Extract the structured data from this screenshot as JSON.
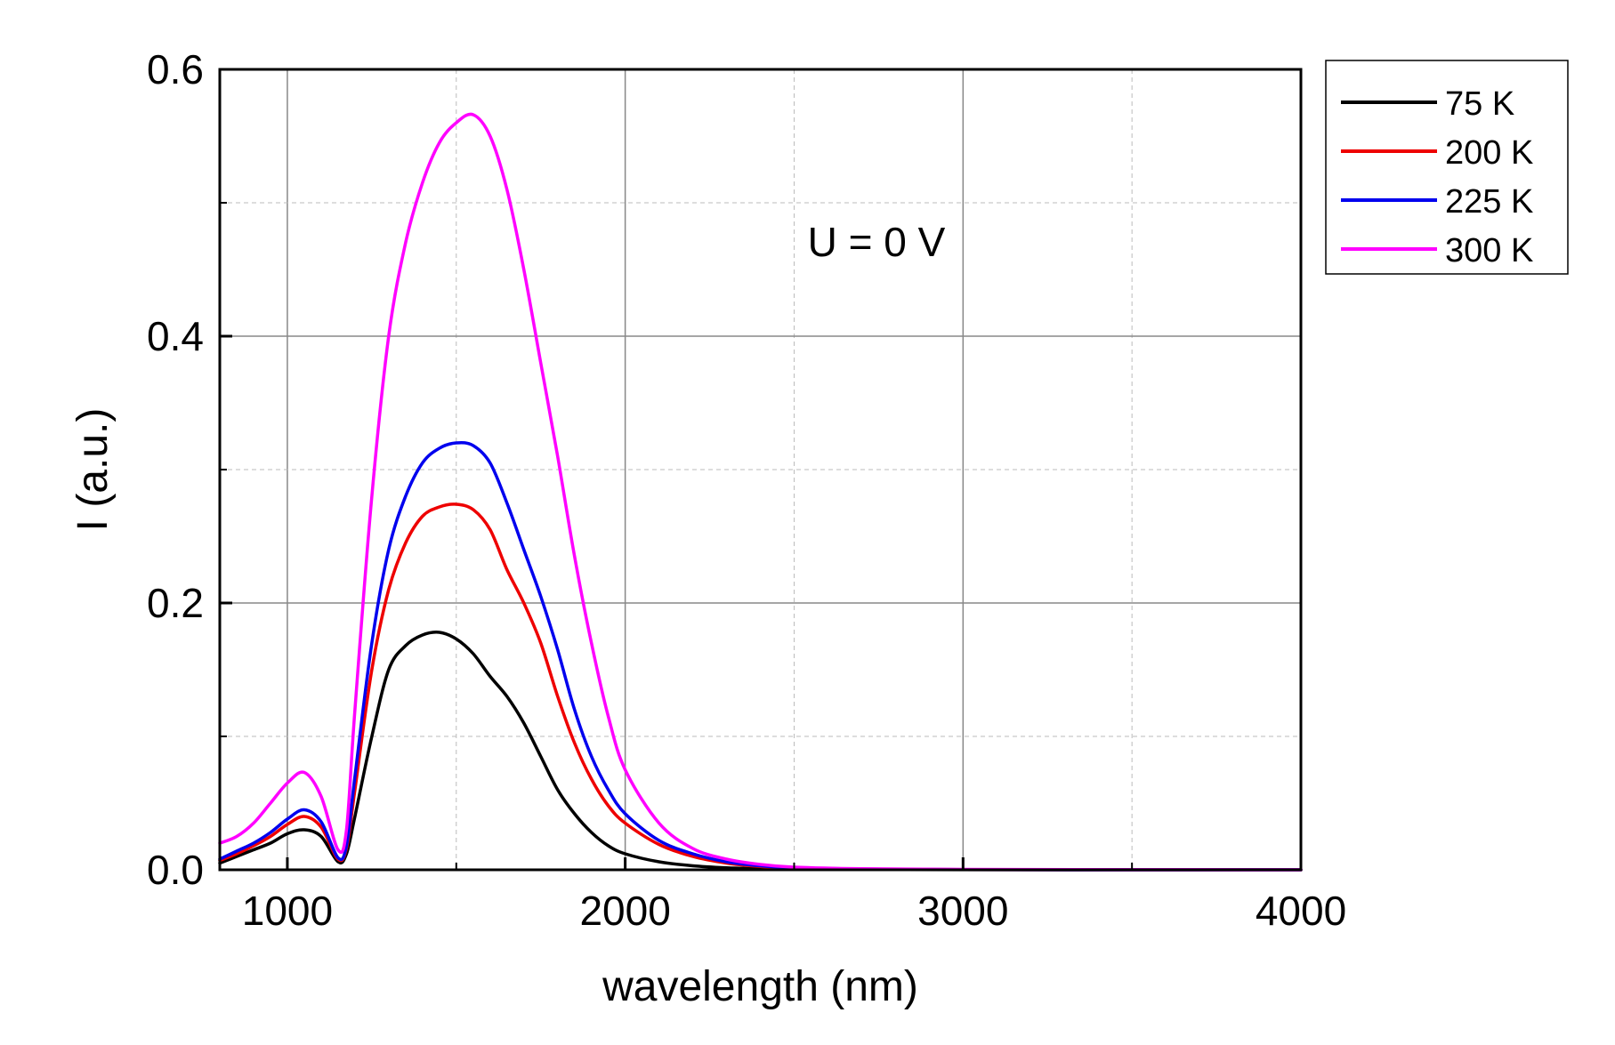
{
  "chart_data": {
    "type": "line",
    "title": "",
    "xlabel": "wavelength (nm)",
    "ylabel": "I (a.u.)",
    "xlim": [
      800,
      4000
    ],
    "ylim": [
      0,
      0.6
    ],
    "xticks": [
      1000,
      2000,
      3000,
      4000
    ],
    "xtick_labels": [
      "1000",
      "2000",
      "3000",
      "4000"
    ],
    "yticks": [
      0.0,
      0.2,
      0.4,
      0.6
    ],
    "ytick_labels": [
      "0.0",
      "0.2",
      "0.4",
      "0.6"
    ],
    "grid": true,
    "legend_position": "outside-top-right",
    "annotation": "U = 0 V",
    "series": [
      {
        "name": "75 K",
        "color": "#000000",
        "x": [
          800,
          850,
          900,
          950,
          1000,
          1050,
          1100,
          1150,
          1175,
          1200,
          1250,
          1300,
          1350,
          1400,
          1450,
          1500,
          1550,
          1600,
          1650,
          1700,
          1750,
          1800,
          1850,
          1900,
          1950,
          2000,
          2100,
          2200,
          2300,
          2400,
          2500,
          2700,
          3000,
          3500,
          4000
        ],
        "y": [
          0.005,
          0.01,
          0.015,
          0.02,
          0.027,
          0.03,
          0.025,
          0.006,
          0.012,
          0.04,
          0.1,
          0.15,
          0.168,
          0.176,
          0.178,
          0.173,
          0.162,
          0.145,
          0.13,
          0.11,
          0.085,
          0.06,
          0.042,
          0.028,
          0.018,
          0.012,
          0.006,
          0.003,
          0.0015,
          0.0008,
          0.0004,
          0.0002,
          0.0001,
          0.0,
          0.0
        ]
      },
      {
        "name": "200 K",
        "color": "#ee0000",
        "x": [
          800,
          850,
          900,
          950,
          1000,
          1050,
          1100,
          1150,
          1175,
          1200,
          1250,
          1300,
          1350,
          1400,
          1450,
          1500,
          1550,
          1600,
          1650,
          1700,
          1750,
          1800,
          1850,
          1900,
          1950,
          2000,
          2100,
          2200,
          2300,
          2400,
          2500,
          2700,
          3000,
          3500,
          4000
        ],
        "y": [
          0.007,
          0.012,
          0.018,
          0.025,
          0.034,
          0.04,
          0.032,
          0.008,
          0.016,
          0.06,
          0.15,
          0.21,
          0.245,
          0.265,
          0.272,
          0.274,
          0.27,
          0.255,
          0.225,
          0.2,
          0.17,
          0.13,
          0.095,
          0.068,
          0.048,
          0.035,
          0.019,
          0.01,
          0.005,
          0.0025,
          0.0012,
          0.0005,
          0.0002,
          0.0,
          0.0
        ]
      },
      {
        "name": "225 K",
        "color": "#0000ee",
        "x": [
          800,
          850,
          900,
          950,
          1000,
          1050,
          1100,
          1150,
          1175,
          1200,
          1250,
          1300,
          1350,
          1400,
          1450,
          1500,
          1550,
          1600,
          1650,
          1700,
          1750,
          1800,
          1850,
          1900,
          1950,
          2000,
          2100,
          2200,
          2300,
          2400,
          2500,
          2700,
          3000,
          3500,
          4000
        ],
        "y": [
          0.008,
          0.014,
          0.02,
          0.028,
          0.038,
          0.045,
          0.036,
          0.009,
          0.018,
          0.07,
          0.17,
          0.24,
          0.28,
          0.305,
          0.316,
          0.32,
          0.318,
          0.305,
          0.275,
          0.24,
          0.205,
          0.165,
          0.12,
          0.085,
          0.06,
          0.042,
          0.022,
          0.012,
          0.006,
          0.003,
          0.0015,
          0.0006,
          0.0002,
          0.0,
          0.0
        ]
      },
      {
        "name": "300 K",
        "color": "#ff00ff",
        "x": [
          800,
          850,
          900,
          950,
          1000,
          1050,
          1100,
          1150,
          1175,
          1200,
          1250,
          1300,
          1350,
          1400,
          1450,
          1500,
          1550,
          1600,
          1650,
          1700,
          1750,
          1800,
          1850,
          1900,
          1950,
          2000,
          2100,
          2200,
          2300,
          2400,
          2500,
          2700,
          3000,
          3500,
          4000
        ],
        "y": [
          0.02,
          0.025,
          0.035,
          0.05,
          0.065,
          0.073,
          0.055,
          0.015,
          0.03,
          0.12,
          0.28,
          0.4,
          0.47,
          0.515,
          0.545,
          0.56,
          0.566,
          0.55,
          0.51,
          0.45,
          0.38,
          0.31,
          0.235,
          0.17,
          0.115,
          0.075,
          0.035,
          0.016,
          0.008,
          0.004,
          0.002,
          0.0008,
          0.0003,
          0.0001,
          0.0
        ]
      }
    ]
  }
}
